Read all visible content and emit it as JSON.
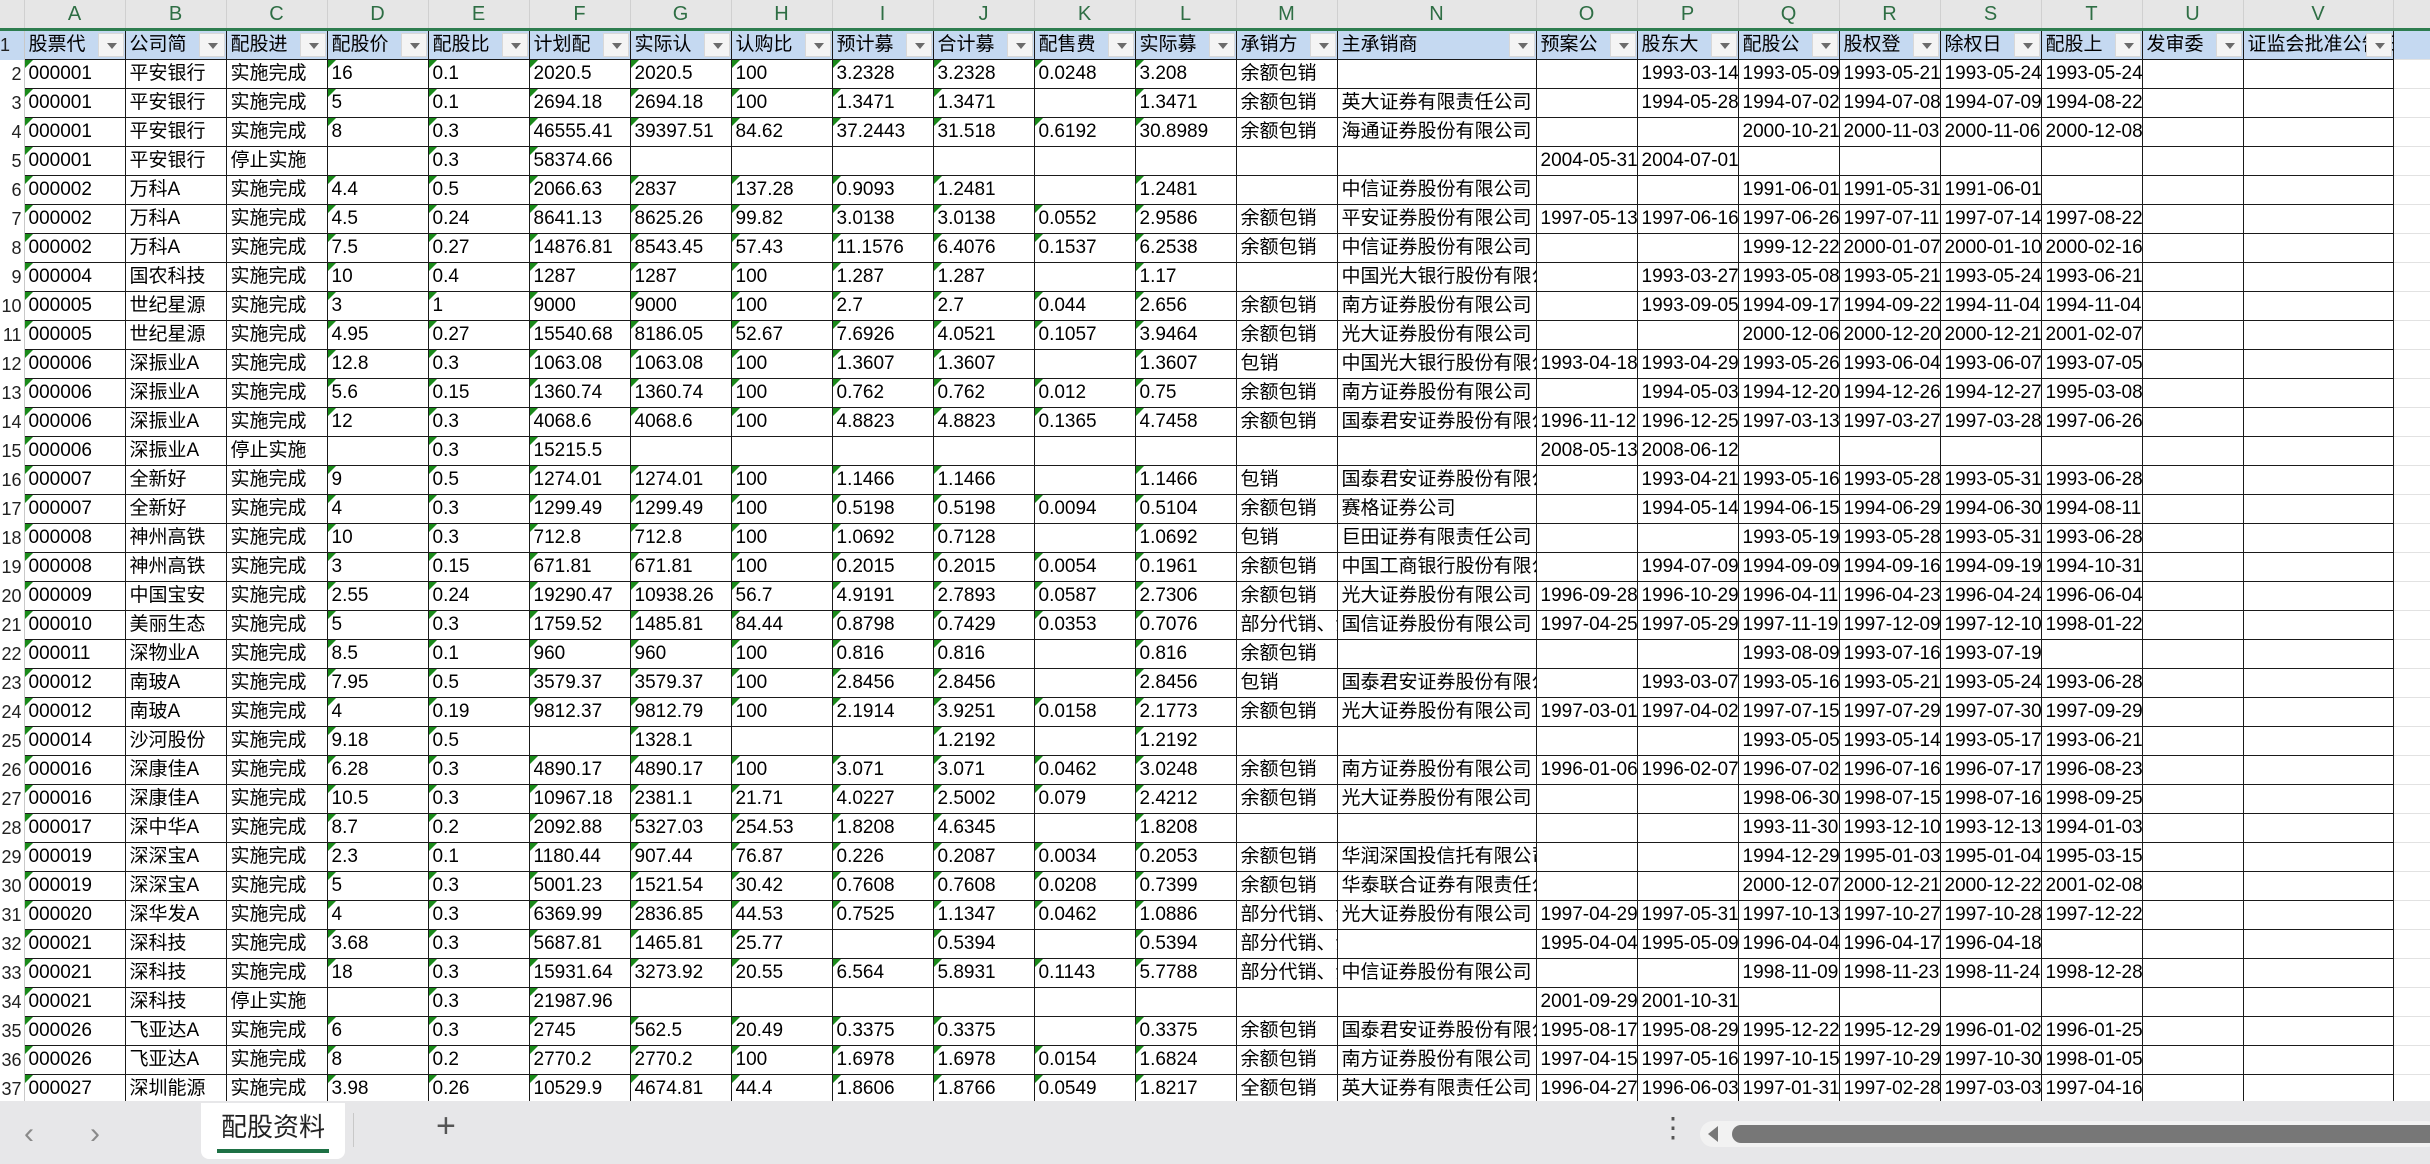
{
  "sheet": {
    "active_tab": "配股资料",
    "add_sheet_icon": "plus-icon",
    "more_icon": "vertical-ellipsis-icon",
    "accent_color": "#1e7145",
    "header_fill_color": "#c5d9f1",
    "error_indicator_color": "#1a8a1a"
  },
  "column_letters": [
    "A",
    "B",
    "C",
    "D",
    "E",
    "F",
    "G",
    "H",
    "I",
    "J",
    "K",
    "L",
    "M",
    "N",
    "O",
    "P",
    "Q",
    "R",
    "S",
    "T",
    "U",
    "V"
  ],
  "headers": [
    "股票代",
    "公司简",
    "配股进",
    "配股价",
    "配股比",
    "计划配",
    "实际认",
    "认购比",
    "预计募",
    "合计募",
    "配售费",
    "实际募",
    "承销方",
    "主承销商",
    "预案公",
    "股东大",
    "配股公",
    "股权登",
    "除权日",
    "配股上",
    "发审委",
    "证监会批准公告日"
  ],
  "rows": [
    [
      "000001",
      "平安银行",
      "实施完成",
      "16",
      "0.1",
      "2020.5",
      "2020.5",
      "100",
      "3.2328",
      "3.2328",
      "0.0248",
      "3.208",
      "余额包销",
      "",
      "",
      "1993-03-14",
      "1993-05-09",
      "1993-05-21",
      "1993-05-24",
      "1993-05-24",
      "",
      ""
    ],
    [
      "000001",
      "平安银行",
      "实施完成",
      "5",
      "0.1",
      "2694.18",
      "2694.18",
      "100",
      "1.3471",
      "1.3471",
      "",
      "1.3471",
      "余额包销",
      "英大证券有限责任公司",
      "",
      "1994-05-28",
      "1994-07-02",
      "1994-07-08",
      "1994-07-09",
      "1994-08-22",
      "",
      ""
    ],
    [
      "000001",
      "平安银行",
      "实施完成",
      "8",
      "0.3",
      "46555.41",
      "39397.51",
      "84.62",
      "37.2443",
      "31.518",
      "0.6192",
      "30.8989",
      "余额包销",
      "海通证券股份有限公司",
      "",
      "",
      "2000-10-21",
      "2000-11-03",
      "2000-11-06",
      "2000-12-08",
      "",
      ""
    ],
    [
      "000001",
      "平安银行",
      "停止实施",
      "",
      "0.3",
      "58374.66",
      "",
      "",
      "",
      "",
      "",
      "",
      "",
      "",
      "2004-05-31",
      "2004-07-01",
      "",
      "",
      "",
      "",
      "",
      ""
    ],
    [
      "000002",
      "万科A",
      "实施完成",
      "4.4",
      "0.5",
      "2066.63",
      "2837",
      "137.28",
      "0.9093",
      "1.2481",
      "",
      "1.2481",
      "",
      "中信证券股份有限公司",
      "",
      "",
      "1991-06-01",
      "1991-05-31",
      "1991-06-01",
      "",
      "",
      ""
    ],
    [
      "000002",
      "万科A",
      "实施完成",
      "4.5",
      "0.24",
      "8641.13",
      "8625.26",
      "99.82",
      "3.0138",
      "3.0138",
      "0.0552",
      "2.9586",
      "余额包销",
      "平安证券股份有限公司",
      "1997-05-13",
      "1997-06-16",
      "1997-06-26",
      "1997-07-11",
      "1997-07-14",
      "1997-08-22",
      "",
      ""
    ],
    [
      "000002",
      "万科A",
      "实施完成",
      "7.5",
      "0.27",
      "14876.81",
      "8543.45",
      "57.43",
      "11.1576",
      "6.4076",
      "0.1537",
      "6.2538",
      "余额包销",
      "中信证券股份有限公司",
      "",
      "",
      "1999-12-22",
      "2000-01-07",
      "2000-01-10",
      "2000-02-16",
      "",
      ""
    ],
    [
      "000004",
      "国农科技",
      "实施完成",
      "10",
      "0.4",
      "1287",
      "1287",
      "100",
      "1.287",
      "1.287",
      "",
      "1.17",
      "",
      "中国光大银行股份有限公司",
      "",
      "1993-03-27",
      "1993-05-08",
      "1993-05-21",
      "1993-05-24",
      "1993-06-21",
      "",
      ""
    ],
    [
      "000005",
      "世纪星源",
      "实施完成",
      "3",
      "1",
      "9000",
      "9000",
      "100",
      "2.7",
      "2.7",
      "0.044",
      "2.656",
      "余额包销",
      "南方证券股份有限公司",
      "",
      "1993-09-05",
      "1994-09-17",
      "1994-09-22",
      "1994-11-04",
      "1994-11-04",
      "",
      ""
    ],
    [
      "000005",
      "世纪星源",
      "实施完成",
      "4.95",
      "0.27",
      "15540.68",
      "8186.05",
      "52.67",
      "7.6926",
      "4.0521",
      "0.1057",
      "3.9464",
      "余额包销",
      "光大证券股份有限公司",
      "",
      "",
      "2000-12-06",
      "2000-12-20",
      "2000-12-21",
      "2001-02-07",
      "",
      ""
    ],
    [
      "000006",
      "深振业A",
      "实施完成",
      "12.8",
      "0.3",
      "1063.08",
      "1063.08",
      "100",
      "1.3607",
      "1.3607",
      "",
      "1.3607",
      "包销",
      "中国光大银行股份有限公司",
      "1993-04-18",
      "1993-04-29",
      "1993-05-26",
      "1993-06-04",
      "1993-06-07",
      "1993-07-05",
      "",
      ""
    ],
    [
      "000006",
      "深振业A",
      "实施完成",
      "5.6",
      "0.15",
      "1360.74",
      "1360.74",
      "100",
      "0.762",
      "0.762",
      "0.012",
      "0.75",
      "余额包销",
      "南方证券股份有限公司",
      "",
      "1994-05-03",
      "1994-12-20",
      "1994-12-26",
      "1994-12-27",
      "1995-03-08",
      "",
      ""
    ],
    [
      "000006",
      "深振业A",
      "实施完成",
      "12",
      "0.3",
      "4068.6",
      "4068.6",
      "100",
      "4.8823",
      "4.8823",
      "0.1365",
      "4.7458",
      "余额包销",
      "国泰君安证券股份有限公司",
      "1996-11-12",
      "1996-12-25",
      "1997-03-13",
      "1997-03-27",
      "1997-03-28",
      "1997-06-26",
      "",
      ""
    ],
    [
      "000006",
      "深振业A",
      "停止实施",
      "",
      "0.3",
      "15215.5",
      "",
      "",
      "",
      "",
      "",
      "",
      "",
      "",
      "2008-05-13",
      "2008-06-12",
      "",
      "",
      "",
      "",
      "",
      ""
    ],
    [
      "000007",
      "全新好",
      "实施完成",
      "9",
      "0.5",
      "1274.01",
      "1274.01",
      "100",
      "1.1466",
      "1.1466",
      "",
      "1.1466",
      "包销",
      "国泰君安证券股份有限公司",
      "",
      "1993-04-21",
      "1993-05-16",
      "1993-05-28",
      "1993-05-31",
      "1993-06-28",
      "",
      ""
    ],
    [
      "000007",
      "全新好",
      "实施完成",
      "4",
      "0.3",
      "1299.49",
      "1299.49",
      "100",
      "0.5198",
      "0.5198",
      "0.0094",
      "0.5104",
      "余额包销",
      "赛格证券公司",
      "",
      "1994-05-14",
      "1994-06-15",
      "1994-06-29",
      "1994-06-30",
      "1994-08-11",
      "",
      ""
    ],
    [
      "000008",
      "神州高铁",
      "实施完成",
      "10",
      "0.3",
      "712.8",
      "712.8",
      "100",
      "1.0692",
      "0.7128",
      "",
      "1.0692",
      "包销",
      "巨田证券有限责任公司",
      "",
      "",
      "1993-05-19",
      "1993-05-28",
      "1993-05-31",
      "1993-06-28",
      "",
      ""
    ],
    [
      "000008",
      "神州高铁",
      "实施完成",
      "3",
      "0.15",
      "671.81",
      "671.81",
      "100",
      "0.2015",
      "0.2015",
      "0.0054",
      "0.1961",
      "余额包销",
      "中国工商银行股份有限公司",
      "",
      "1994-07-09",
      "1994-09-09",
      "1994-09-16",
      "1994-09-19",
      "1994-10-31",
      "",
      ""
    ],
    [
      "000009",
      "中国宝安",
      "实施完成",
      "2.55",
      "0.24",
      "19290.47",
      "10938.26",
      "56.7",
      "4.9191",
      "2.7893",
      "0.0587",
      "2.7306",
      "余额包销",
      "光大证券股份有限公司",
      "1996-09-28",
      "1996-10-29",
      "1996-04-11",
      "1996-04-23",
      "1996-04-24",
      "1996-06-04",
      "",
      ""
    ],
    [
      "000010",
      "美丽生态",
      "实施完成",
      "5",
      "0.3",
      "1759.52",
      "1485.81",
      "84.44",
      "0.8798",
      "0.7429",
      "0.0353",
      "0.7076",
      "部分代销、余额包销",
      "国信证券股份有限公司",
      "1997-04-25",
      "1997-05-29",
      "1997-11-19",
      "1997-12-09",
      "1997-12-10",
      "1998-01-22",
      "",
      ""
    ],
    [
      "000011",
      "深物业A",
      "实施完成",
      "8.5",
      "0.1",
      "960",
      "960",
      "100",
      "0.816",
      "0.816",
      "",
      "0.816",
      "余额包销",
      "",
      "",
      "",
      "1993-08-09",
      "1993-07-16",
      "1993-07-19",
      "",
      "",
      ""
    ],
    [
      "000012",
      "南玻A",
      "实施完成",
      "7.95",
      "0.5",
      "3579.37",
      "3579.37",
      "100",
      "2.8456",
      "2.8456",
      "",
      "2.8456",
      "包销",
      "国泰君安证券股份有限公司",
      "",
      "1993-03-07",
      "1993-05-16",
      "1993-05-21",
      "1993-05-24",
      "1993-06-28",
      "",
      ""
    ],
    [
      "000012",
      "南玻A",
      "实施完成",
      "4",
      "0.19",
      "9812.37",
      "9812.79",
      "100",
      "2.1914",
      "3.9251",
      "0.0158",
      "2.1773",
      "余额包销",
      "光大证券股份有限公司",
      "1997-03-01",
      "1997-04-02",
      "1997-07-15",
      "1997-07-29",
      "1997-07-30",
      "1997-09-29",
      "",
      ""
    ],
    [
      "000014",
      "沙河股份",
      "实施完成",
      "9.18",
      "0.5",
      "",
      "1328.1",
      "",
      "",
      "1.2192",
      "",
      "1.2192",
      "",
      "",
      "",
      "",
      "1993-05-05",
      "1993-05-14",
      "1993-05-17",
      "1993-06-21",
      "",
      ""
    ],
    [
      "000016",
      "深康佳A",
      "实施完成",
      "6.28",
      "0.3",
      "4890.17",
      "4890.17",
      "100",
      "3.071",
      "3.071",
      "0.0462",
      "3.0248",
      "余额包销",
      "南方证券股份有限公司",
      "1996-01-06",
      "1996-02-07",
      "1996-07-02",
      "1996-07-16",
      "1996-07-17",
      "1996-08-23",
      "",
      ""
    ],
    [
      "000016",
      "深康佳A",
      "实施完成",
      "10.5",
      "0.3",
      "10967.18",
      "2381.1",
      "21.71",
      "4.0227",
      "2.5002",
      "0.079",
      "2.4212",
      "余额包销",
      "光大证券股份有限公司",
      "",
      "",
      "1998-06-30",
      "1998-07-15",
      "1998-07-16",
      "1998-09-25",
      "",
      ""
    ],
    [
      "000017",
      "深中华A",
      "实施完成",
      "8.7",
      "0.2",
      "2092.88",
      "5327.03",
      "254.53",
      "1.8208",
      "4.6345",
      "",
      "1.8208",
      "",
      "",
      "",
      "",
      "1993-11-30",
      "1993-12-10",
      "1993-12-13",
      "1994-01-03",
      "",
      ""
    ],
    [
      "000019",
      "深深宝A",
      "实施完成",
      "2.3",
      "0.1",
      "1180.44",
      "907.44",
      "76.87",
      "0.226",
      "0.2087",
      "0.0034",
      "0.2053",
      "余额包销",
      "华润深国投信托有限公司",
      "",
      "",
      "1994-12-29",
      "1995-01-03",
      "1995-01-04",
      "1995-03-15",
      "",
      ""
    ],
    [
      "000019",
      "深深宝A",
      "实施完成",
      "5",
      "0.3",
      "5001.23",
      "1521.54",
      "30.42",
      "0.7608",
      "0.7608",
      "0.0208",
      "0.7399",
      "余额包销",
      "华泰联合证券有限责任公司",
      "",
      "",
      "2000-12-07",
      "2000-12-21",
      "2000-12-22",
      "2001-02-08",
      "",
      ""
    ],
    [
      "000020",
      "深华发A",
      "实施完成",
      "4",
      "0.3",
      "6369.99",
      "2836.85",
      "44.53",
      "0.7525",
      "1.1347",
      "0.0462",
      "1.0886",
      "部分代销、余额包销",
      "光大证券股份有限公司",
      "1997-04-29",
      "1997-05-31",
      "1997-10-13",
      "1997-10-27",
      "1997-10-28",
      "1997-12-22",
      "",
      ""
    ],
    [
      "000021",
      "深科技",
      "实施完成",
      "3.68",
      "0.3",
      "5687.81",
      "1465.81",
      "25.77",
      "",
      "0.5394",
      "",
      "0.5394",
      "部分代销、余额包销",
      "",
      "1995-04-04",
      "1995-05-09",
      "1996-04-04",
      "1996-04-17",
      "1996-04-18",
      "",
      "",
      ""
    ],
    [
      "000021",
      "深科技",
      "实施完成",
      "18",
      "0.3",
      "15931.64",
      "3273.92",
      "20.55",
      "6.564",
      "5.8931",
      "0.1143",
      "5.7788",
      "部分代销、余额包销",
      "中信证券股份有限公司",
      "",
      "",
      "1998-11-09",
      "1998-11-23",
      "1998-11-24",
      "1998-12-28",
      "",
      ""
    ],
    [
      "000021",
      "深科技",
      "停止实施",
      "",
      "0.3",
      "21987.96",
      "",
      "",
      "",
      "",
      "",
      "",
      "",
      "",
      "2001-09-29",
      "2001-10-31",
      "",
      "",
      "",
      "",
      "",
      ""
    ],
    [
      "000026",
      "飞亚达A",
      "实施完成",
      "6",
      "0.3",
      "2745",
      "562.5",
      "20.49",
      "0.3375",
      "0.3375",
      "",
      "0.3375",
      "余额包销",
      "国泰君安证券股份有限公司",
      "1995-08-17",
      "1995-08-29",
      "1995-12-22",
      "1995-12-29",
      "1996-01-02",
      "1996-01-25",
      "",
      ""
    ],
    [
      "000026",
      "飞亚达A",
      "实施完成",
      "8",
      "0.2",
      "2770.2",
      "2770.2",
      "100",
      "1.6978",
      "1.6978",
      "0.0154",
      "1.6824",
      "余额包销",
      "南方证券股份有限公司",
      "1997-04-15",
      "1997-05-16",
      "1997-10-15",
      "1997-10-29",
      "1997-10-30",
      "1998-01-05",
      "",
      ""
    ],
    [
      "000027",
      "深圳能源",
      "实施完成",
      "3.98",
      "0.26",
      "10529.9",
      "4674.81",
      "44.4",
      "1.8606",
      "1.8766",
      "0.0549",
      "1.8217",
      "全额包销",
      "英大证券有限责任公司",
      "1996-04-27",
      "1996-06-03",
      "1997-01-31",
      "1997-02-28",
      "1997-03-03",
      "1997-04-16",
      "",
      ""
    ]
  ]
}
